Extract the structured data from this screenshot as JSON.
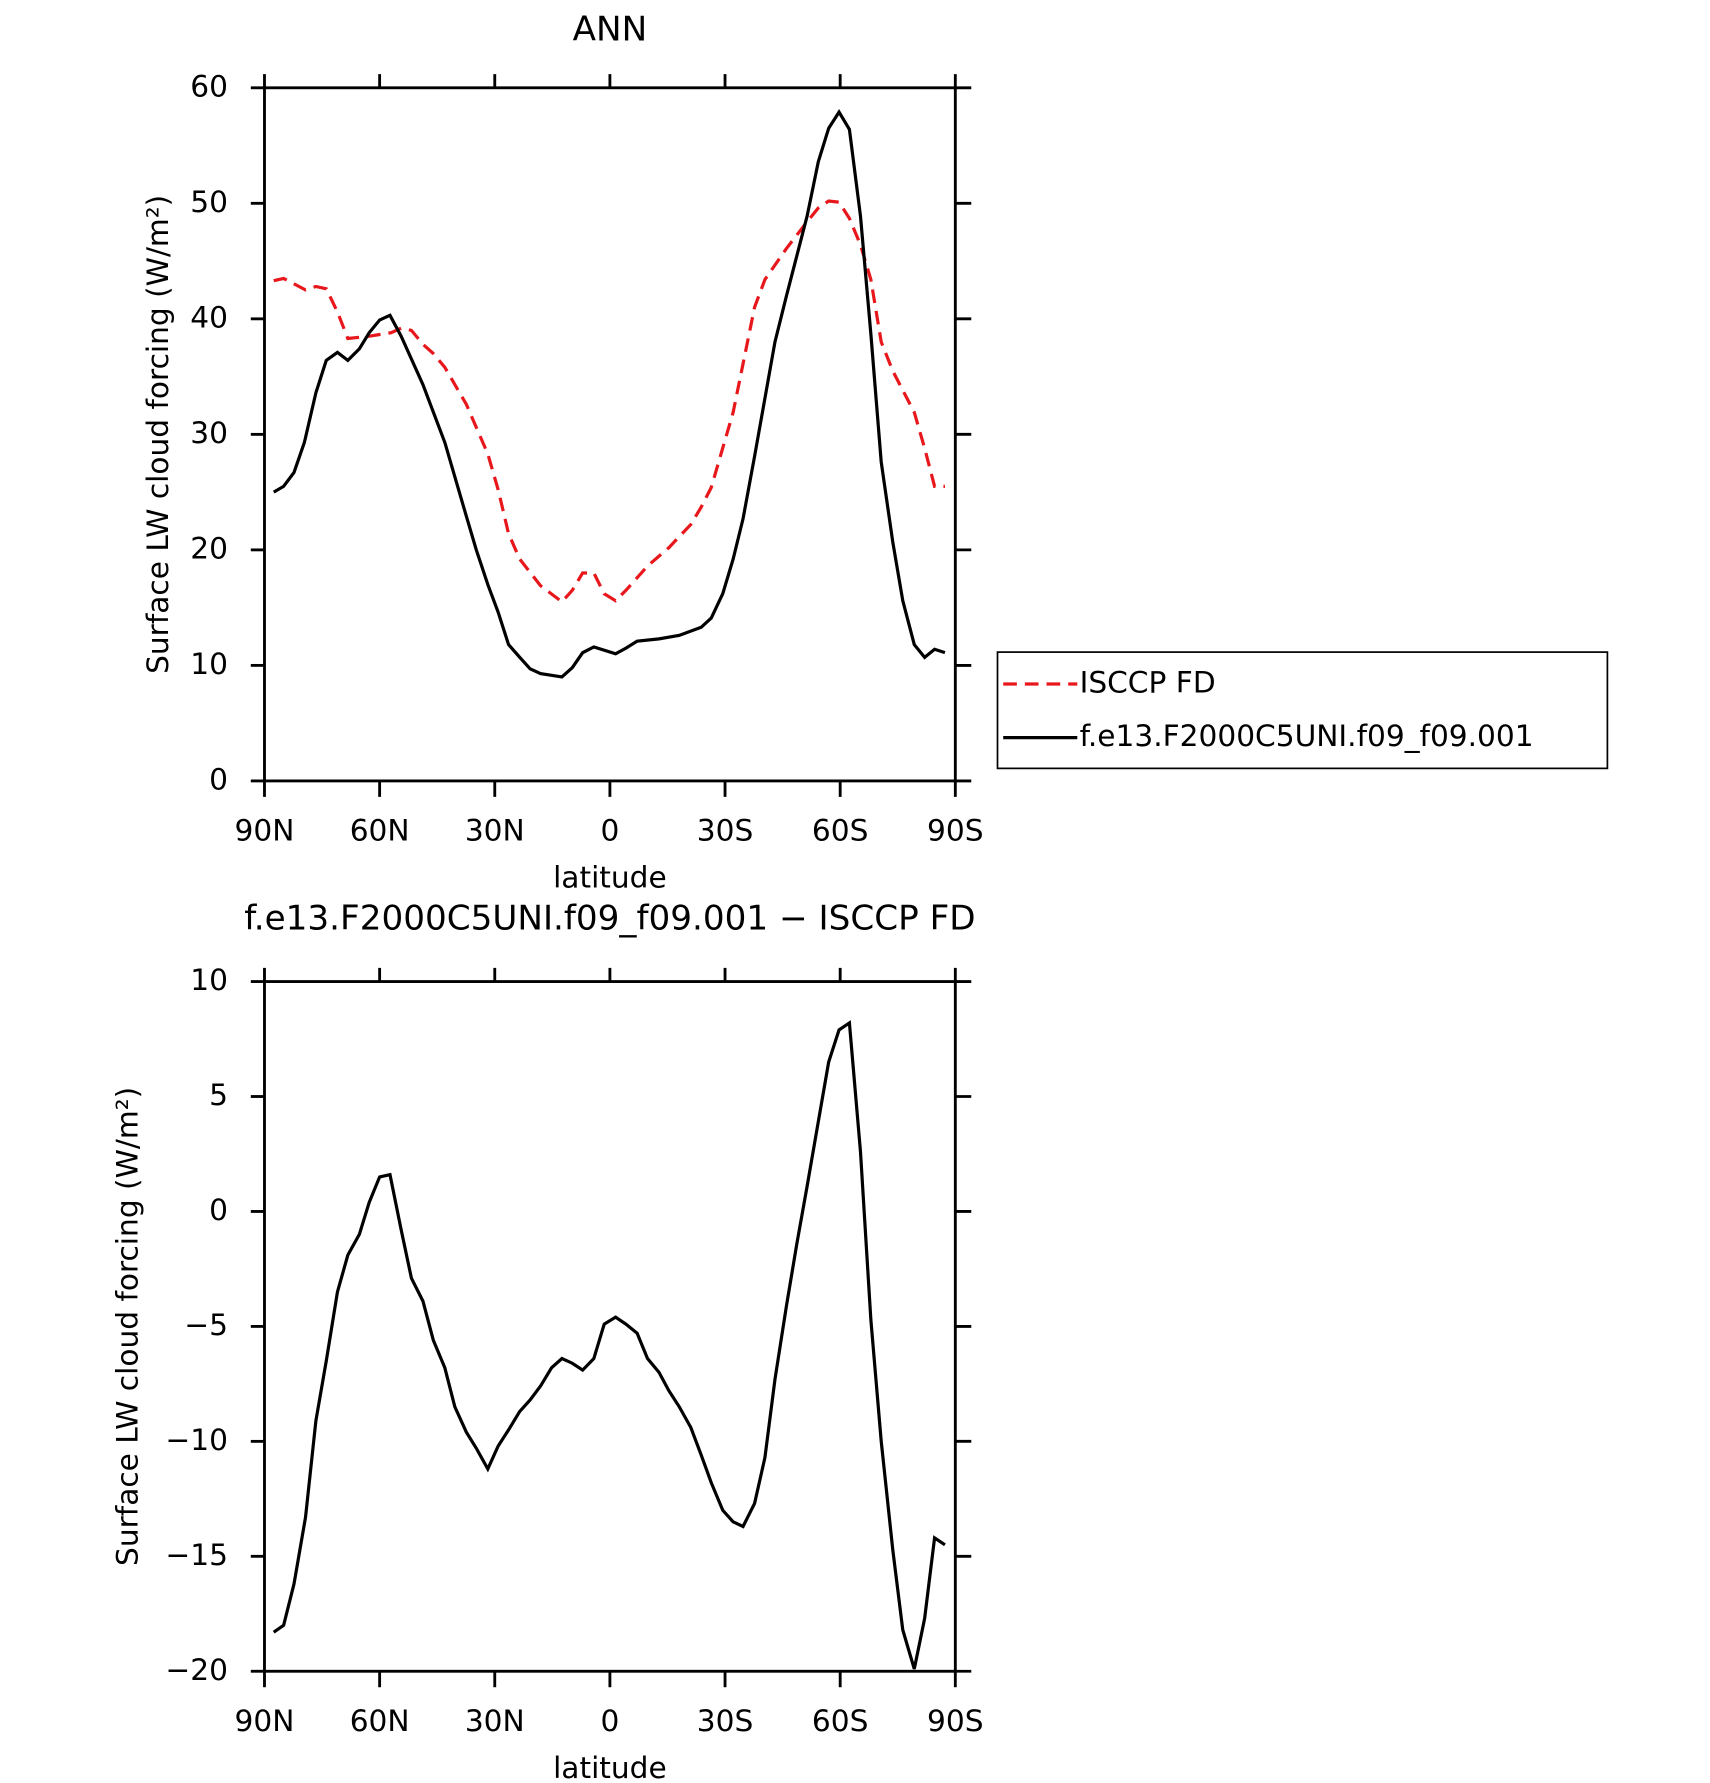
{
  "chart_data": [
    {
      "type": "line",
      "title": "ANN",
      "xlabel": "latitude",
      "ylabel": "Surface LW cloud forcing (W/m²)",
      "xlim": [
        90,
        -90
      ],
      "xticks": [
        {
          "value": 90,
          "label": "90N"
        },
        {
          "value": 60,
          "label": "60N"
        },
        {
          "value": 30,
          "label": "30N"
        },
        0,
        {
          "value": -30,
          "label": "30S"
        },
        {
          "value": -60,
          "label": "60S"
        },
        {
          "value": -90,
          "label": "90S"
        }
      ],
      "ylim": [
        0,
        60
      ],
      "yticks": [
        0,
        10,
        20,
        30,
        40,
        50,
        60
      ],
      "legend": "right",
      "series": [
        {
          "name": "ISCCP FD",
          "color": "#e8171c",
          "linestyle": "dashed",
          "x": [
            87.6,
            85,
            79.3,
            76.6,
            73.9,
            71,
            68.3,
            62.7,
            57,
            54.4,
            51.7,
            48.7,
            46,
            43,
            37.4,
            34.8,
            31.8,
            29.1,
            26.4,
            23.5,
            18.1,
            12.5,
            9.8,
            7.1,
            4.2,
            1.5,
            -1.5,
            -4.2,
            -9.8,
            -15.4,
            -21.1,
            -23.8,
            -26.4,
            -32.1,
            -37.7,
            -40.4,
            -46,
            -51.4,
            -54.3,
            -57,
            -59.7,
            -62.4,
            -65.3,
            -68,
            -70.7,
            -73.7,
            -79.3,
            -82,
            -84.6,
            -87.3
          ],
          "values": [
            43.3,
            43.5,
            42.5,
            42.8,
            42.6,
            40.6,
            38.3,
            38.5,
            38.8,
            39.2,
            39.0,
            37.8,
            37.0,
            35.8,
            32.6,
            30.6,
            28.3,
            25.2,
            21.4,
            19.2,
            16.9,
            15.5,
            16.5,
            18.0,
            18.0,
            16.2,
            15.6,
            16.5,
            18.6,
            20.2,
            22.2,
            23.7,
            25.4,
            31.9,
            41.0,
            43.4,
            46.1,
            48.4,
            49.6,
            50.2,
            50.1,
            48.7,
            46.4,
            43.4,
            38.0,
            35.5,
            31.9,
            28.8,
            25.5,
            25.5
          ]
        },
        {
          "name": "f.e13.F2000C5UNI.f09_f09.001",
          "color": "#000000",
          "linestyle": "solid",
          "x": [
            87.6,
            85,
            82.3,
            79.6,
            76.6,
            73.9,
            71,
            68.3,
            65.3,
            62.7,
            60,
            57.3,
            54.4,
            48.7,
            43,
            37.4,
            34.8,
            31.8,
            29.1,
            26.4,
            23.5,
            20.8,
            18.1,
            12.5,
            9.8,
            7.1,
            4.2,
            -1.5,
            -4.2,
            -7.1,
            -12.8,
            -18.1,
            -23.8,
            -26.4,
            -29.4,
            -32.1,
            -34.7,
            -37.7,
            -43,
            -46,
            -51.4,
            -54.3,
            -57,
            -59.7,
            -62.4,
            -65.3,
            -68,
            -70.7,
            -73.7,
            -76.3,
            -79.3,
            -82,
            -84.6,
            -87.3
          ],
          "values": [
            25.0,
            25.5,
            26.7,
            29.3,
            33.6,
            36.4,
            37.1,
            36.4,
            37.4,
            38.8,
            39.9,
            40.3,
            38.5,
            34.3,
            29.3,
            22.9,
            20.0,
            17.0,
            14.6,
            11.8,
            10.7,
            9.7,
            9.3,
            9.0,
            9.8,
            11.1,
            11.6,
            11.0,
            11.5,
            12.1,
            12.3,
            12.6,
            13.3,
            14.1,
            16.2,
            19.2,
            22.7,
            28.1,
            38.0,
            42.0,
            48.9,
            53.6,
            56.5,
            57.9,
            56.4,
            48.9,
            38.7,
            27.6,
            20.7,
            15.6,
            11.8,
            10.7,
            11.4,
            11.1
          ]
        }
      ]
    },
    {
      "type": "line",
      "title": "f.e13.F2000C5UNI.f09_f09.001 − ISCCP FD",
      "xlabel": "latitude",
      "ylabel": "Surface LW cloud forcing (W/m²)",
      "xlim": [
        90,
        -90
      ],
      "xticks": [
        {
          "value": 90,
          "label": "90N"
        },
        {
          "value": 60,
          "label": "60N"
        },
        {
          "value": 30,
          "label": "30N"
        },
        0,
        {
          "value": -30,
          "label": "30S"
        },
        {
          "value": -60,
          "label": "60S"
        },
        {
          "value": -90,
          "label": "90S"
        }
      ],
      "ylim": [
        -20,
        10
      ],
      "yticks": [
        {
          "value": -20,
          "label": "−20"
        },
        {
          "value": -15,
          "label": "−15"
        },
        {
          "value": -10,
          "label": "−10"
        },
        {
          "value": -5,
          "label": "−5"
        },
        0,
        5,
        10
      ],
      "series": [
        {
          "color": "#000000",
          "linestyle": "solid",
          "x": [
            87.6,
            85,
            82.3,
            79.3,
            76.6,
            73.9,
            71,
            68.3,
            65.3,
            62.7,
            60,
            57.3,
            54.4,
            51.7,
            48.7,
            46,
            43,
            40.4,
            37.4,
            34.8,
            31.8,
            29.1,
            26.4,
            23.5,
            20.8,
            18.1,
            15.2,
            12.5,
            9.8,
            7.1,
            4.2,
            1.5,
            -1.5,
            -4.2,
            -7.1,
            -9.8,
            -12.8,
            -15.4,
            -18.1,
            -21.1,
            -23.8,
            -26.4,
            -29.4,
            -32.1,
            -34.7,
            -37.7,
            -40.4,
            -43,
            -46,
            -48.7,
            -51.4,
            -54.3,
            -57,
            -59.7,
            -62.4,
            -65.3,
            -68,
            -70.7,
            -73.7,
            -76.3,
            -79.3,
            -82,
            -84.6,
            -87.3
          ],
          "values": [
            -18.3,
            -18.0,
            -16.2,
            -13.3,
            -9.1,
            -6.5,
            -3.5,
            -1.9,
            -1.0,
            0.4,
            1.5,
            1.6,
            -0.8,
            -2.9,
            -3.9,
            -5.6,
            -6.8,
            -8.5,
            -9.6,
            -10.3,
            -11.2,
            -10.2,
            -9.5,
            -8.7,
            -8.2,
            -7.6,
            -6.8,
            -6.4,
            -6.6,
            -6.9,
            -6.4,
            -4.9,
            -4.6,
            -4.9,
            -5.3,
            -6.4,
            -7.0,
            -7.8,
            -8.5,
            -9.4,
            -10.6,
            -11.8,
            -13.0,
            -13.5,
            -13.7,
            -12.7,
            -10.7,
            -7.3,
            -4.1,
            -1.4,
            1.1,
            3.9,
            6.5,
            7.9,
            8.2,
            2.6,
            -4.7,
            -10.0,
            -14.7,
            -18.2,
            -19.9,
            -17.7,
            -14.2,
            -14.5
          ]
        }
      ]
    }
  ]
}
